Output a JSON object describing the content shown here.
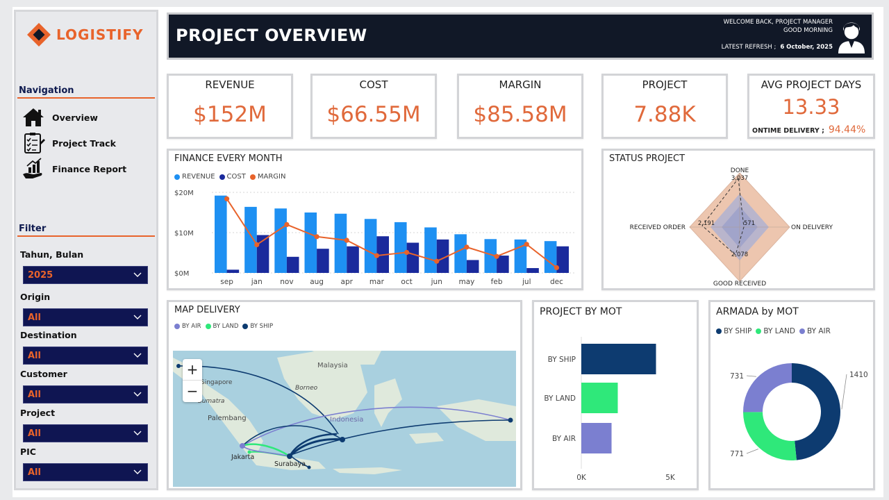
{
  "brand": {
    "name": "LOGISTIFY",
    "accent": "#e8632b"
  },
  "sidebar": {
    "nav_title": "Navigation",
    "nav_items": [
      {
        "label": "Overview",
        "icon": "home-icon"
      },
      {
        "label": "Project Track",
        "icon": "checklist-icon"
      },
      {
        "label": "Finance Report",
        "icon": "finance-hand-icon"
      }
    ],
    "filter_title": "Filter",
    "filters": [
      {
        "label": "Tahun, Bulan",
        "value": "2025"
      },
      {
        "label": "Origin",
        "value": "All"
      },
      {
        "label": "Destination",
        "value": "All"
      },
      {
        "label": "Customer",
        "value": "All"
      },
      {
        "label": "Project",
        "value": "All"
      },
      {
        "label": "PIC",
        "value": "All"
      }
    ]
  },
  "header": {
    "title": "PROJECT OVERVIEW",
    "welcome": "WELCOME BACK, PROJECT MANAGER",
    "greeting": "GOOD MORNING",
    "refresh_label": "LATEST REFRESH ;",
    "refresh_date": "6 October, 2025",
    "avatar_icon": "user-avatar-icon"
  },
  "kpis": [
    {
      "title": "REVENUE",
      "value": "$152M"
    },
    {
      "title": "COST",
      "value": "$66.55M"
    },
    {
      "title": "MARGIN",
      "value": "$85.58M"
    },
    {
      "title": "PROJECT",
      "value": "7.88K"
    },
    {
      "title": "AVG PROJECT DAYS",
      "value": "13.33",
      "sub_label": "ONTIME DELIVERY ;",
      "sub_value": "94.44%"
    }
  ],
  "finance": {
    "title": "FINANCE EVERY MONTH",
    "legend": [
      "REVENUE",
      "COST",
      "MARGIN"
    ],
    "colors": {
      "revenue": "#1e90f2",
      "cost": "#1a2a9c",
      "margin": "#e8632b"
    },
    "y_ticks": [
      "$20M",
      "$10M",
      "$0M"
    ]
  },
  "status": {
    "title": "STATUS PROJECT",
    "axes": [
      "DONE",
      "ON DELIVERY",
      "GOOD RECEIVED",
      "RECEIVED ORDER"
    ],
    "values": [
      "3,037",
      "571",
      "2,078",
      "2,191"
    ]
  },
  "map": {
    "title": "MAP DELIVERY",
    "legend": [
      {
        "label": "BY AIR",
        "color": "#7b7fd0"
      },
      {
        "label": "BY LAND",
        "color": "#2fe87a"
      },
      {
        "label": "BY SHIP",
        "color": "#0d3b70"
      }
    ],
    "places": [
      "Malaysia",
      "Singapore",
      "Borneo",
      "Sumatra",
      "Palembang",
      "Indonesia",
      "Jakarta",
      "Surabaya"
    ],
    "zoom_in": "+",
    "zoom_out": "−"
  },
  "mot": {
    "title": "PROJECT BY MOT",
    "x_ticks": [
      "0K",
      "5K"
    ]
  },
  "armada": {
    "title": "ARMADA by MOT",
    "legend": [
      "BY SHIP",
      "BY LAND",
      "BY AIR"
    ]
  },
  "chart_data": [
    {
      "type": "bar",
      "title": "FINANCE EVERY MONTH",
      "categories": [
        "sep",
        "jan",
        "nov",
        "aug",
        "apr",
        "mar",
        "oct",
        "jun",
        "may",
        "feb",
        "jul",
        "dec"
      ],
      "series": [
        {
          "name": "REVENUE",
          "values": [
            19.2,
            16.4,
            16.0,
            15.0,
            14.7,
            13.4,
            12.6,
            11.3,
            9.6,
            8.4,
            8.3,
            7.9
          ]
        },
        {
          "name": "COST",
          "values": [
            0.8,
            9.4,
            4.0,
            6.0,
            6.6,
            9.1,
            7.5,
            8.3,
            3.2,
            4.3,
            1.2,
            6.6
          ]
        },
        {
          "name": "MARGIN",
          "values": [
            18.4,
            7.0,
            12.0,
            9.0,
            8.1,
            4.3,
            5.1,
            2.9,
            6.4,
            4.1,
            7.1,
            1.3
          ]
        }
      ],
      "ylim": [
        0,
        20
      ],
      "y_unit": "$M",
      "legend_position": "top-left",
      "grid": true
    },
    {
      "type": "radar",
      "title": "STATUS PROJECT",
      "categories": [
        "DONE",
        "ON DELIVERY",
        "GOOD RECEIVED",
        "RECEIVED ORDER"
      ],
      "values": [
        3037,
        571,
        2078,
        2191
      ]
    },
    {
      "type": "bar",
      "orientation": "horizontal",
      "title": "PROJECT BY MOT",
      "categories": [
        "BY SHIP",
        "BY LAND",
        "BY AIR"
      ],
      "values": [
        4200,
        2050,
        1700
      ],
      "xlim": [
        0,
        5000
      ],
      "colors": [
        "#0d3b70",
        "#2fe87a",
        "#7b7fd0"
      ]
    },
    {
      "type": "pie",
      "donut": true,
      "title": "ARMADA by MOT",
      "categories": [
        "BY SHIP",
        "BY LAND",
        "BY AIR"
      ],
      "values": [
        1410,
        771,
        731
      ],
      "labels": [
        "1410",
        "771",
        "731"
      ],
      "colors": [
        "#0d3b70",
        "#2fe87a",
        "#7b7fd0"
      ]
    }
  ]
}
